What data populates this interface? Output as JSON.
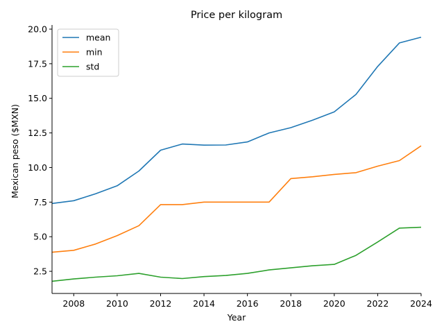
{
  "chart_data": {
    "type": "line",
    "title": "Price per kilogram",
    "xlabel": "Year",
    "ylabel": "Mexican peso ($MXN)",
    "xlim": [
      2007,
      2024
    ],
    "ylim": [
      0.9,
      20.3
    ],
    "xticks": [
      "2008",
      "2010",
      "2012",
      "2014",
      "2016",
      "2018",
      "2020",
      "2022",
      "2024"
    ],
    "yticks": [
      "2.5",
      "5.0",
      "7.5",
      "10.0",
      "12.5",
      "15.0",
      "17.5",
      "20.0"
    ],
    "grid": false,
    "legend_position": "top-left",
    "x": [
      2007,
      2008,
      2009,
      2010,
      2011,
      2012,
      2013,
      2014,
      2015,
      2016,
      2017,
      2018,
      2019,
      2020,
      2021,
      2022,
      2023,
      2024
    ],
    "series": [
      {
        "name": "mean",
        "color": "#1f77b4",
        "values": [
          7.4,
          7.6,
          8.1,
          8.68,
          9.75,
          11.25,
          11.7,
          11.62,
          11.63,
          11.85,
          12.5,
          12.88,
          13.42,
          14.02,
          15.28,
          17.3,
          19.0,
          19.42
        ]
      },
      {
        "name": "min",
        "color": "#ff7f0e",
        "values": [
          3.88,
          4.02,
          4.47,
          5.08,
          5.8,
          7.32,
          7.32,
          7.5,
          7.5,
          7.5,
          7.5,
          9.2,
          9.33,
          9.5,
          9.63,
          10.1,
          10.5,
          11.57
        ]
      },
      {
        "name": "std",
        "color": "#2ca02c",
        "values": [
          1.78,
          1.95,
          2.08,
          2.18,
          2.35,
          2.08,
          1.98,
          2.12,
          2.2,
          2.35,
          2.6,
          2.75,
          2.9,
          3.0,
          3.65,
          4.62,
          5.62,
          5.68
        ]
      }
    ]
  }
}
